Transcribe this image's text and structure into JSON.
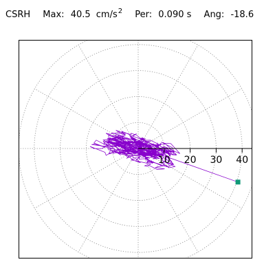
{
  "header": {
    "station": "CSRH",
    "max_label": "Max:",
    "max_value": "40.5",
    "max_unit": "cm/s",
    "max_unit_exp": "2",
    "per_label": "Per:",
    "per_value": "0.090 s",
    "ang_label": "Ang:",
    "ang_value": "-18.6"
  },
  "chart_data": {
    "type": "scatter",
    "subtype": "polar acceleration hodograph",
    "title": "",
    "xlabel": "",
    "ylabel": "",
    "units": "cm/s2",
    "radial_ticks": [
      "10",
      "20",
      "30",
      "40"
    ],
    "radial_max": 46,
    "angular_grid_step_deg": 30,
    "grid": true,
    "peak": {
      "value": 40.5,
      "angle_deg": -18.6
    },
    "colors": {
      "trace": "#8800cc",
      "grid": "#888888",
      "axis": "#000000",
      "peak_marker": "#119977"
    }
  }
}
